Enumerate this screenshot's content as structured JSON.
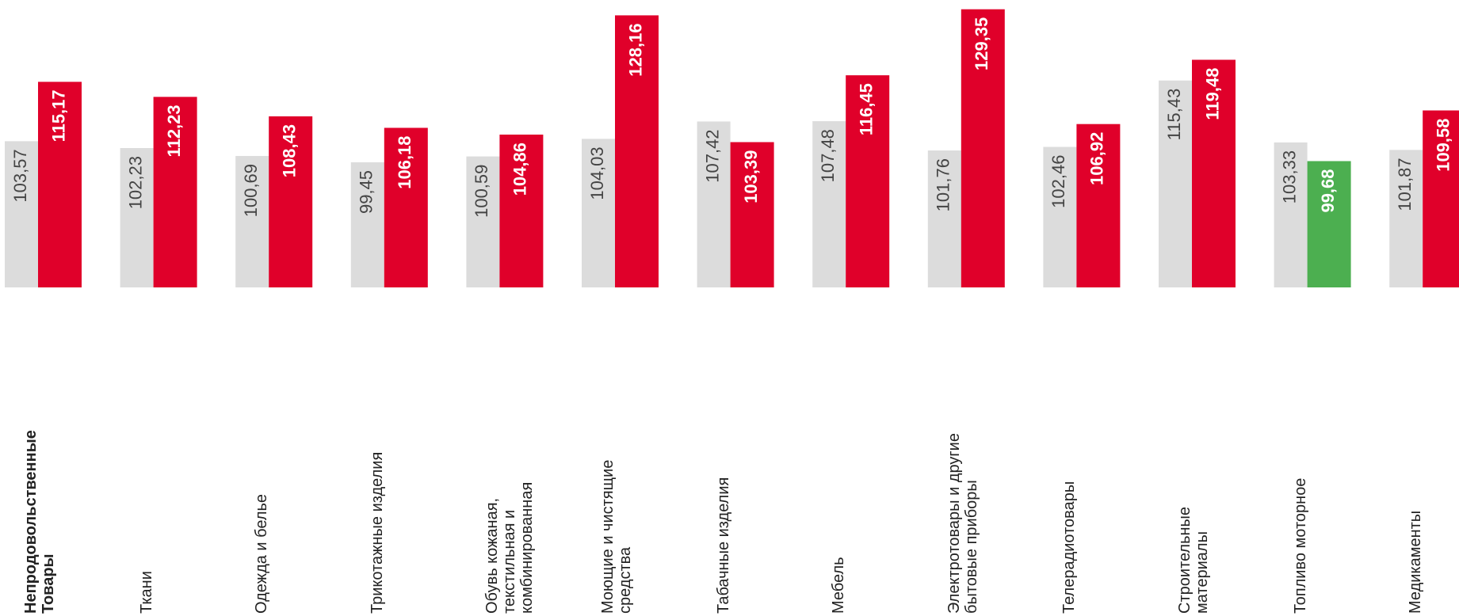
{
  "chart_data": {
    "type": "bar",
    "categories": [
      "Непродовольственные\nТовары",
      "Ткани",
      "Одежда и белье",
      "Трикотажные изделия",
      "Обувь кожаная,\nтекстильная и\nкомбинированная",
      "Моющие и чистящие\nсредства",
      "Табачные изделия",
      "Мебель",
      "Электротовары и другие\nбытовые приборы",
      "Телерадиотовары",
      "Строительные\nматериалы",
      "Топливо моторное",
      "Медикаменты"
    ],
    "series": [
      {
        "color": "#dcdcdc",
        "values": [
          103.57,
          102.23,
          100.69,
          99.45,
          100.59,
          104.03,
          107.42,
          107.48,
          101.76,
          102.46,
          115.43,
          103.33,
          101.87
        ],
        "value_labels": [
          "103,57",
          "102,23",
          "100,69",
          "99,45",
          "100,59",
          "104,03",
          "107,42",
          "107,48",
          "101,76",
          "102,46",
          "115,43",
          "103,33",
          "101,87"
        ]
      },
      {
        "color": "#e0002a",
        "colors": [
          "#e0002a",
          "#e0002a",
          "#e0002a",
          "#e0002a",
          "#e0002a",
          "#e0002a",
          "#e0002a",
          "#e0002a",
          "#e0002a",
          "#e0002a",
          "#e0002a",
          "#4caf50",
          "#e0002a"
        ],
        "values": [
          115.17,
          112.23,
          108.43,
          106.18,
          104.86,
          128.16,
          103.39,
          116.45,
          129.35,
          106.92,
          119.48,
          99.68,
          109.58
        ],
        "value_labels": [
          "115,17",
          "112,23",
          "108,43",
          "106,18",
          "104,86",
          "128,16",
          "103,39",
          "116,45",
          "129,35",
          "106,92",
          "119,48",
          "99,68",
          "109,58"
        ]
      }
    ],
    "ylim": [
      75,
      130
    ]
  }
}
